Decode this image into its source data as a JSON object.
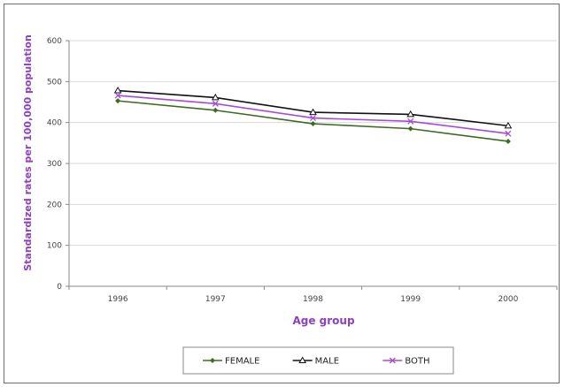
{
  "chart_data": {
    "type": "line",
    "title": "",
    "xlabel": "Age group",
    "ylabel": "Standardized rates per 100,000 population",
    "categories": [
      "1996",
      "1997",
      "1998",
      "1999",
      "2000"
    ],
    "ylim": [
      0,
      600
    ],
    "yticks": [
      0,
      100,
      200,
      300,
      400,
      500,
      600
    ],
    "grid": true,
    "legend_position": "bottom",
    "series": [
      {
        "name": "FEMALE",
        "values": [
          453,
          430,
          397,
          385,
          354
        ],
        "color": "#3d6b1f",
        "marker": "diamond"
      },
      {
        "name": "MALE",
        "values": [
          478,
          461,
          425,
          420,
          392
        ],
        "color": "#111111",
        "marker": "triangle-open"
      },
      {
        "name": "BOTH",
        "values": [
          466,
          446,
          411,
          403,
          373
        ],
        "color": "#a64bd6",
        "marker": "x"
      }
    ],
    "colors": {
      "axis_title": "#8e3fc2",
      "grid": "#d9d9d9",
      "axis": "#888888"
    }
  }
}
